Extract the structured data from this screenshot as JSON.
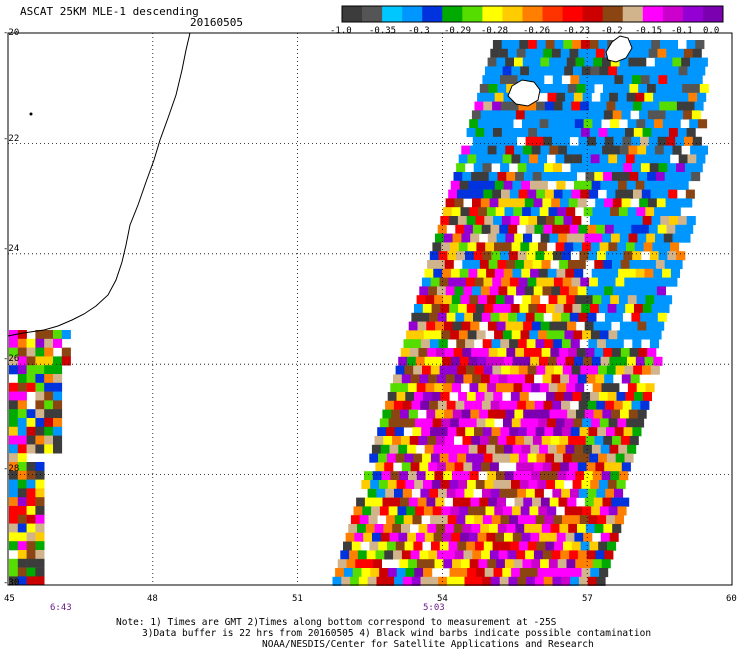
{
  "header": {
    "title": "ASCAT 25KM MLE-1 descending",
    "date": "20160505"
  },
  "colorbar": {
    "labels": [
      "-1.0",
      "-0.35",
      "-0.3",
      "-0.29",
      "-0.28",
      "-0.26",
      "-0.23",
      "-0.2",
      "-0.15",
      "-0.1",
      "0.0"
    ],
    "colors": [
      "#3c3c3c",
      "#555555",
      "#00c8ff",
      "#0096ff",
      "#0033dd",
      "#00aa00",
      "#55dd00",
      "#ffff00",
      "#ffcc00",
      "#ff8000",
      "#ff3300",
      "#ff0000",
      "#cc0000",
      "#8b4513",
      "#d2b48c",
      "#ff00ff",
      "#cc00cc",
      "#9400d3",
      "#7a00b0"
    ]
  },
  "chart_data": {
    "type": "heatmap",
    "title": "ASCAT 25KM MLE-1 descending",
    "xaxis": {
      "ticks": [
        "45",
        "48",
        "51",
        "54",
        "57",
        "60"
      ],
      "range": [
        45,
        60
      ]
    },
    "yaxis": {
      "ticks": [
        "-20",
        "-22",
        "-24",
        "-26",
        "-28",
        "-30"
      ],
      "range": [
        -30,
        -20
      ]
    },
    "pass_times": [
      {
        "lon": 46.2,
        "label": "6:43"
      },
      {
        "lon": 53.5,
        "label": "5:03"
      }
    ],
    "grid": true
  },
  "notes": {
    "line1": "Note: 1) Times are GMT 2)Times along bottom correspond to measurement at -25S",
    "line2": "3)Data buffer is 22 hrs from 20160505 4) Black wind barbs indicate possible contamination",
    "line3": "NOAA/NESDIS/Center for Satellite Applications and Research"
  }
}
